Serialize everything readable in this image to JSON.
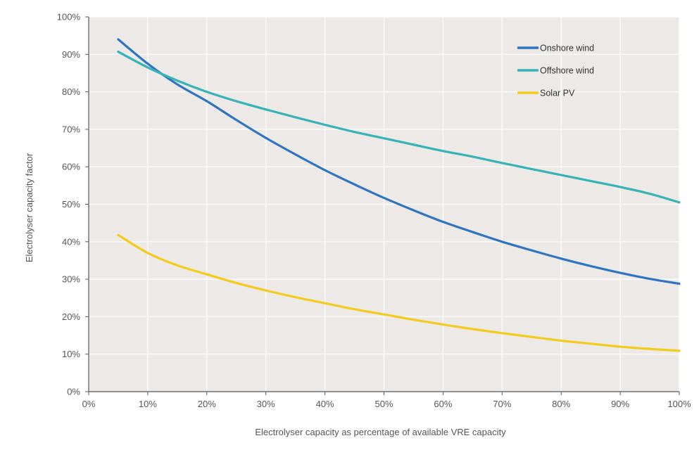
{
  "colors": {
    "plot_background": "#ece9e6",
    "gridline": "#ffffff",
    "axis": "#5a5a5a",
    "onshore_wind": "#2f74c0",
    "offshore_wind": "#36b3b7",
    "solar_pv": "#f2cb1c"
  },
  "chart_data": {
    "type": "line",
    "title": "",
    "xlabel": "Electrolyser capacity as percentage of available VRE capacity",
    "ylabel": "Electrolyser capacity factor",
    "xlim": [
      0,
      100
    ],
    "ylim": [
      0,
      100
    ],
    "grid": true,
    "legend_position": "top-right",
    "x_ticks": [
      "0%",
      "10%",
      "20%",
      "30%",
      "40%",
      "50%",
      "60%",
      "70%",
      "80%",
      "90%",
      "100%"
    ],
    "y_ticks": [
      "0%",
      "10%",
      "20%",
      "30%",
      "40%",
      "50%",
      "60%",
      "70%",
      "80%",
      "90%",
      "100%"
    ],
    "x": [
      5,
      10,
      15,
      20,
      25,
      30,
      35,
      40,
      45,
      50,
      55,
      60,
      65,
      70,
      75,
      80,
      85,
      90,
      95,
      100
    ],
    "series": [
      {
        "name": "Onshore wind",
        "color_key": "onshore_wind",
        "values": [
          94.0,
          87.5,
          82.0,
          77.5,
          72.5,
          67.7,
          63.3,
          59.1,
          55.3,
          51.7,
          48.4,
          45.3,
          42.6,
          40.0,
          37.7,
          35.5,
          33.5,
          31.7,
          30.1,
          28.8
        ]
      },
      {
        "name": "Offshore wind",
        "color_key": "offshore_wind",
        "values": [
          90.7,
          86.5,
          83.0,
          80.0,
          77.5,
          75.3,
          73.2,
          71.2,
          69.3,
          67.6,
          65.9,
          64.2,
          62.7,
          61.0,
          59.4,
          57.8,
          56.2,
          54.6,
          52.8,
          50.5
        ]
      },
      {
        "name": "Solar PV",
        "color_key": "solar_pv",
        "values": [
          41.8,
          37.0,
          33.7,
          31.3,
          29.0,
          27.0,
          25.2,
          23.6,
          22.0,
          20.6,
          19.2,
          17.9,
          16.7,
          15.6,
          14.6,
          13.6,
          12.8,
          12.0,
          11.4,
          10.9
        ]
      }
    ]
  }
}
